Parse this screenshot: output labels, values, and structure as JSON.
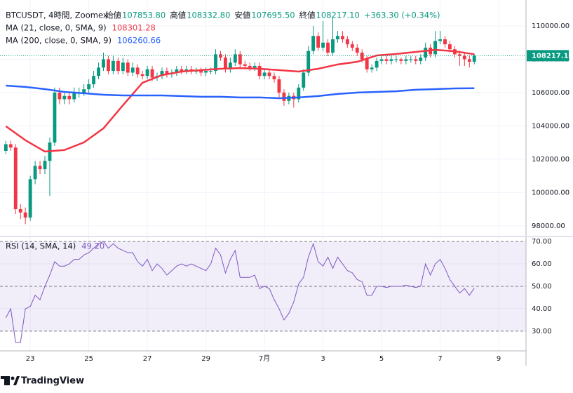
{
  "chart_data": {
    "type": "candlestick",
    "header": {
      "symbol": "BTCUSDT, 4時間, Zoomex",
      "open_label": "始値",
      "open": "107853.80",
      "high_label": "高値",
      "high": "108332.80",
      "low_label": "安値",
      "low": "107695.50",
      "close_label": "終値",
      "close": "108217.10",
      "change": "+363.30 (+0.34%)"
    },
    "up_color": "#089981",
    "down_color": "#f23645",
    "xlim": [
      -1.2,
      106.6
    ],
    "xticks": [
      {
        "value": 5,
        "label": "23"
      },
      {
        "value": 17,
        "label": "25"
      },
      {
        "value": 29,
        "label": "27"
      },
      {
        "value": 41,
        "label": "29"
      },
      {
        "value": 53,
        "label": "7月"
      },
      {
        "value": 65,
        "label": "3"
      },
      {
        "value": 77,
        "label": "5"
      },
      {
        "value": 89,
        "label": "7"
      },
      {
        "value": 101,
        "label": "9"
      }
    ],
    "ylim": [
      97400,
      111560
    ],
    "yticks": [
      {
        "value": 98000,
        "label": "98000.00"
      },
      {
        "value": 100000,
        "label": "100000.00"
      },
      {
        "value": 102000,
        "label": "102000.00"
      },
      {
        "value": 104000,
        "label": "104000.00"
      },
      {
        "value": 106000,
        "label": "106000.00"
      },
      {
        "value": 108000,
        "label": "108000.00"
      },
      {
        "value": 110000,
        "label": "110000.00"
      }
    ],
    "last_price": {
      "value": 108217.1,
      "label": "108217.10"
    },
    "open": [
      102500,
      102900,
      102700,
      99000,
      98800,
      98500,
      100800,
      101600,
      101400,
      101900,
      103000,
      106000,
      105600,
      105800,
      105600,
      106000,
      106000,
      106200,
      106500,
      107000,
      107500,
      108000,
      107300,
      107900,
      107300,
      107800,
      107200,
      107500,
      107100,
      107000,
      107400,
      106900,
      107000,
      107300,
      107100,
      107200,
      107400,
      107300,
      107400,
      107300,
      107300,
      107200,
      107300,
      107300,
      108300,
      108100,
      107400,
      107800,
      108300,
      107700,
      107600,
      107500,
      107600,
      107000,
      107200,
      107000,
      106800,
      106000,
      105500,
      105800,
      105600,
      106300,
      107200,
      108500,
      109400,
      108700,
      109000,
      108400,
      109200,
      109400,
      109200,
      108900,
      108700,
      108400,
      108000,
      107400,
      107500,
      107900,
      108000,
      107900,
      108000,
      108000,
      107900,
      108000,
      108000,
      107900,
      108100,
      108700,
      108300,
      109100,
      109200,
      108900,
      108600,
      108300,
      108200,
      108000,
      107853.8
    ],
    "high": [
      103100,
      103100,
      102900,
      99300,
      99100,
      101000,
      101900,
      101900,
      102200,
      103300,
      106300,
      106300,
      106100,
      106000,
      106300,
      106300,
      106500,
      106800,
      107300,
      107800,
      108400,
      108200,
      108200,
      108100,
      108100,
      108000,
      107800,
      107700,
      107300,
      107600,
      107600,
      107200,
      107500,
      107500,
      107400,
      107600,
      107600,
      107600,
      107600,
      107500,
      107500,
      107500,
      107500,
      108600,
      108500,
      108300,
      108100,
      108600,
      108500,
      107900,
      107800,
      107800,
      107800,
      107400,
      107400,
      107200,
      107000,
      106200,
      106000,
      106000,
      106500,
      107400,
      108800,
      110000,
      109600,
      110300,
      109200,
      110500,
      109700,
      109700,
      109400,
      109100,
      108900,
      108600,
      108200,
      107700,
      108100,
      108200,
      108200,
      108200,
      108200,
      108100,
      108200,
      108200,
      108200,
      108300,
      109000,
      108900,
      109700,
      109700,
      109400,
      109100,
      108800,
      108500,
      108400,
      108200,
      108332.8
    ],
    "low": [
      102300,
      102500,
      98700,
      98400,
      98100,
      98300,
      100500,
      101100,
      101100,
      99800,
      102800,
      105300,
      105300,
      105300,
      105400,
      105700,
      105800,
      106000,
      106300,
      106800,
      107300,
      107100,
      107100,
      107100,
      107100,
      107000,
      107000,
      106900,
      106800,
      106800,
      106700,
      106700,
      106800,
      106900,
      106900,
      107000,
      107100,
      107100,
      107100,
      107100,
      107000,
      107000,
      107100,
      107100,
      107900,
      107200,
      107200,
      107600,
      107500,
      107400,
      107300,
      107300,
      106800,
      106800,
      106800,
      106600,
      105700,
      105200,
      105300,
      105100,
      105400,
      106100,
      107000,
      108300,
      108500,
      108500,
      108200,
      108200,
      109000,
      109000,
      108700,
      108500,
      108200,
      107800,
      107200,
      107200,
      107300,
      107700,
      107700,
      107700,
      107800,
      107700,
      107700,
      107800,
      107700,
      107700,
      107900,
      108100,
      108100,
      108900,
      108700,
      108400,
      108100,
      107600,
      107600,
      107500,
      107695.5
    ],
    "close": [
      102900,
      102700,
      99000,
      98800,
      98500,
      100800,
      101600,
      101400,
      101900,
      103000,
      106000,
      105600,
      105800,
      105600,
      106000,
      106000,
      106200,
      106500,
      107000,
      107500,
      108000,
      107300,
      107900,
      107300,
      107800,
      107200,
      107500,
      107100,
      107000,
      107400,
      106900,
      107000,
      107300,
      107100,
      107200,
      107400,
      107300,
      107400,
      107300,
      107300,
      107200,
      107300,
      107300,
      108300,
      108100,
      107400,
      107800,
      108300,
      107700,
      107600,
      107500,
      107600,
      107000,
      107200,
      107000,
      106800,
      106000,
      105500,
      105800,
      105600,
      106300,
      107200,
      108500,
      109400,
      108700,
      109000,
      108400,
      109200,
      109400,
      109200,
      108900,
      108700,
      108400,
      108000,
      107400,
      107500,
      107900,
      108000,
      107900,
      108000,
      108000,
      107900,
      108000,
      108000,
      107900,
      108100,
      108700,
      108300,
      109100,
      109200,
      108900,
      108600,
      108300,
      108200,
      108000,
      107853.8,
      108217.1
    ],
    "series": [
      {
        "name": "MA (21, close, 0, SMA, 9)",
        "last_label": "108301.28",
        "color": "#f23645",
        "x": [
          0,
          4,
          8,
          12,
          16,
          20,
          24,
          28,
          32,
          36,
          40,
          44,
          48,
          52,
          56,
          60,
          64,
          68,
          72,
          76,
          80,
          84,
          88,
          92,
          96
        ],
        "values": [
          103980,
          103140,
          102460,
          102550,
          103010,
          103850,
          105240,
          106590,
          107050,
          107260,
          107350,
          107430,
          107470,
          107430,
          107350,
          107260,
          107430,
          107690,
          107850,
          108230,
          108320,
          108440,
          108570,
          108480,
          108301.28
        ]
      },
      {
        "name": "MA (200, close, 0, SMA, 9)",
        "last_label": "106260.66",
        "color": "#2962ff",
        "x": [
          0,
          4,
          8,
          12,
          16,
          20,
          24,
          28,
          32,
          36,
          40,
          44,
          48,
          52,
          56,
          60,
          64,
          68,
          72,
          76,
          80,
          84,
          88,
          92,
          96
        ],
        "values": [
          106420,
          106340,
          106210,
          106040,
          105960,
          105870,
          105830,
          105830,
          105830,
          105790,
          105750,
          105750,
          105710,
          105710,
          105660,
          105710,
          105790,
          105920,
          106000,
          106040,
          106080,
          106170,
          106210,
          106250,
          106260.66
        ]
      }
    ],
    "rsi": {
      "name": "RSI (14, SMA, 14)",
      "last_label": "49.20",
      "color": "#7e57c2",
      "ylim": [
        21.2,
        71.9
      ],
      "yticks": [
        {
          "value": 30,
          "label": "30.00"
        },
        {
          "value": 40,
          "label": "40.00"
        },
        {
          "value": 50,
          "label": "50.00"
        },
        {
          "value": 60,
          "label": "60.00"
        },
        {
          "value": 70,
          "label": "70.00"
        }
      ],
      "values": [
        36,
        40,
        25,
        25,
        40,
        41,
        46,
        44,
        50,
        55,
        61,
        59,
        59,
        60,
        62,
        62,
        64,
        65,
        67,
        69,
        70,
        67,
        69,
        67,
        66,
        65,
        65,
        61,
        59,
        62,
        57,
        60,
        58,
        55,
        57,
        59,
        60,
        59,
        60,
        59,
        58,
        57,
        60,
        67,
        64,
        56,
        62,
        66,
        54,
        54,
        54,
        55,
        49,
        50,
        49,
        44,
        40,
        35,
        38,
        43,
        51,
        54,
        63,
        69,
        61,
        59,
        63,
        58,
        63,
        60,
        57,
        56,
        53,
        52,
        46,
        46,
        50,
        50,
        49.5,
        50,
        50,
        50,
        50.5,
        50,
        49.5,
        50,
        60,
        55,
        60,
        62,
        58,
        53,
        50,
        47,
        49,
        46,
        49.2
      ]
    },
    "footer": "TradingView"
  }
}
